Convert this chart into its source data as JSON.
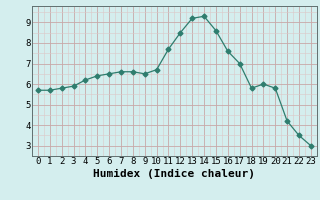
{
  "x": [
    0,
    1,
    2,
    3,
    4,
    5,
    6,
    7,
    8,
    9,
    10,
    11,
    12,
    13,
    14,
    15,
    16,
    17,
    18,
    19,
    20,
    21,
    22,
    23
  ],
  "y": [
    5.7,
    5.7,
    5.8,
    5.9,
    6.2,
    6.4,
    6.5,
    6.6,
    6.6,
    6.5,
    6.7,
    7.7,
    8.5,
    9.2,
    9.3,
    8.6,
    7.6,
    7.0,
    5.8,
    6.0,
    5.8,
    4.2,
    3.5,
    3.0
  ],
  "line_color": "#2e7d6e",
  "marker": "D",
  "marker_size": 2.5,
  "bg_color": "#d4eeee",
  "grid_color_major": "#c8a8a8",
  "grid_color_minor": "#dcc8c8",
  "xlabel": "Humidex (Indice chaleur)",
  "xlabel_fontsize": 8,
  "xlim": [
    -0.5,
    23.5
  ],
  "ylim": [
    2.5,
    9.8
  ],
  "yticks": [
    3,
    4,
    5,
    6,
    7,
    8,
    9
  ],
  "xticks": [
    0,
    1,
    2,
    3,
    4,
    5,
    6,
    7,
    8,
    9,
    10,
    11,
    12,
    13,
    14,
    15,
    16,
    17,
    18,
    19,
    20,
    21,
    22,
    23
  ],
  "tick_fontsize": 6.5
}
